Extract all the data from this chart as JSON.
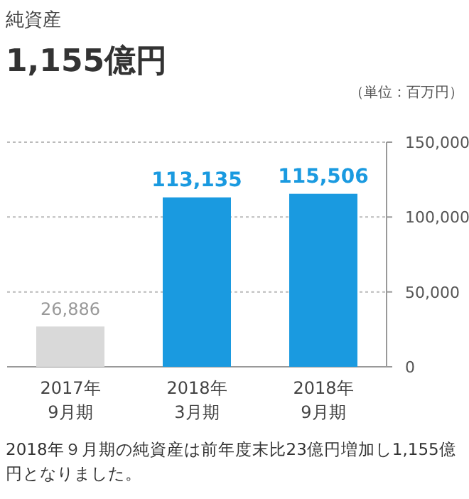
{
  "chart_data": {
    "type": "bar",
    "title": "純資産",
    "subtitle": "1,155億円",
    "ylabel": "（単位：百万円）",
    "categories": [
      "2017年\n9月期",
      "2018年\n3月期",
      "2018年\n9月期"
    ],
    "values": [
      26886,
      113135,
      115506
    ],
    "colors": [
      "#d9d9d9",
      "#1a9ae0",
      "#1a9ae0"
    ],
    "value_labels": [
      "26,886",
      "113,135",
      "115,506"
    ],
    "ylim": [
      0,
      150000
    ],
    "yticks": [
      {
        "value": 0,
        "label": "0"
      },
      {
        "value": 50000,
        "label": "50,000"
      },
      {
        "value": 100000,
        "label": "100,000"
      },
      {
        "value": 150000,
        "label": "150,000"
      }
    ],
    "grid": "y",
    "annotations": [
      "2018年９月期の純資産は前年度末比23億円増加し1,155億円となりました。"
    ]
  }
}
